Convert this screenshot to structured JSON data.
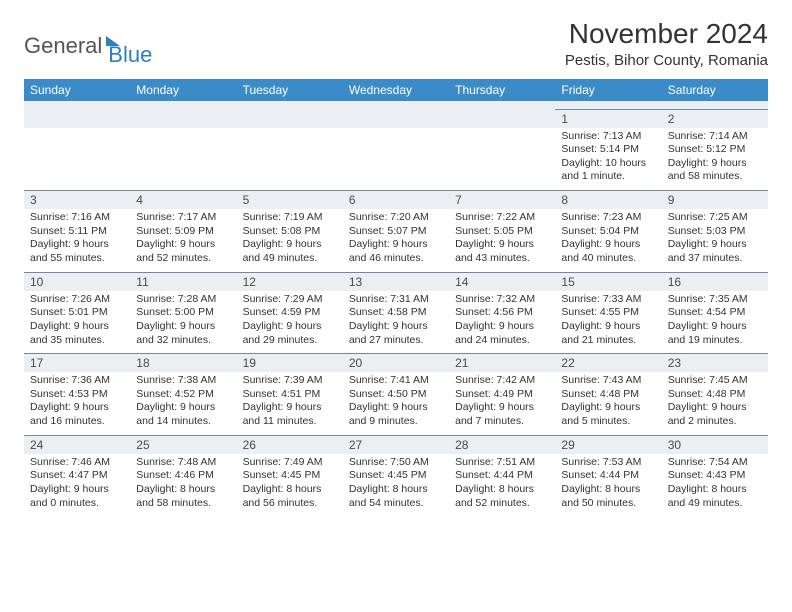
{
  "logo": {
    "part1": "General",
    "part2": "Blue"
  },
  "title": "November 2024",
  "location": "Pestis, Bihor County, Romania",
  "weekdays": [
    "Sunday",
    "Monday",
    "Tuesday",
    "Wednesday",
    "Thursday",
    "Friday",
    "Saturday"
  ],
  "colors": {
    "header_bg": "#3b8bc9",
    "header_text": "#ffffff",
    "daynum_bg": "#eceff1",
    "border": "#6e8aa0",
    "body_text": "#333333",
    "logo_gray": "#555555",
    "logo_blue": "#2f7fbf"
  },
  "weeks": [
    [
      null,
      null,
      null,
      null,
      null,
      {
        "n": "1",
        "sr": "Sunrise: 7:13 AM",
        "ss": "Sunset: 5:14 PM",
        "dl": "Daylight: 10 hours and 1 minute."
      },
      {
        "n": "2",
        "sr": "Sunrise: 7:14 AM",
        "ss": "Sunset: 5:12 PM",
        "dl": "Daylight: 9 hours and 58 minutes."
      }
    ],
    [
      {
        "n": "3",
        "sr": "Sunrise: 7:16 AM",
        "ss": "Sunset: 5:11 PM",
        "dl": "Daylight: 9 hours and 55 minutes."
      },
      {
        "n": "4",
        "sr": "Sunrise: 7:17 AM",
        "ss": "Sunset: 5:09 PM",
        "dl": "Daylight: 9 hours and 52 minutes."
      },
      {
        "n": "5",
        "sr": "Sunrise: 7:19 AM",
        "ss": "Sunset: 5:08 PM",
        "dl": "Daylight: 9 hours and 49 minutes."
      },
      {
        "n": "6",
        "sr": "Sunrise: 7:20 AM",
        "ss": "Sunset: 5:07 PM",
        "dl": "Daylight: 9 hours and 46 minutes."
      },
      {
        "n": "7",
        "sr": "Sunrise: 7:22 AM",
        "ss": "Sunset: 5:05 PM",
        "dl": "Daylight: 9 hours and 43 minutes."
      },
      {
        "n": "8",
        "sr": "Sunrise: 7:23 AM",
        "ss": "Sunset: 5:04 PM",
        "dl": "Daylight: 9 hours and 40 minutes."
      },
      {
        "n": "9",
        "sr": "Sunrise: 7:25 AM",
        "ss": "Sunset: 5:03 PM",
        "dl": "Daylight: 9 hours and 37 minutes."
      }
    ],
    [
      {
        "n": "10",
        "sr": "Sunrise: 7:26 AM",
        "ss": "Sunset: 5:01 PM",
        "dl": "Daylight: 9 hours and 35 minutes."
      },
      {
        "n": "11",
        "sr": "Sunrise: 7:28 AM",
        "ss": "Sunset: 5:00 PM",
        "dl": "Daylight: 9 hours and 32 minutes."
      },
      {
        "n": "12",
        "sr": "Sunrise: 7:29 AM",
        "ss": "Sunset: 4:59 PM",
        "dl": "Daylight: 9 hours and 29 minutes."
      },
      {
        "n": "13",
        "sr": "Sunrise: 7:31 AM",
        "ss": "Sunset: 4:58 PM",
        "dl": "Daylight: 9 hours and 27 minutes."
      },
      {
        "n": "14",
        "sr": "Sunrise: 7:32 AM",
        "ss": "Sunset: 4:56 PM",
        "dl": "Daylight: 9 hours and 24 minutes."
      },
      {
        "n": "15",
        "sr": "Sunrise: 7:33 AM",
        "ss": "Sunset: 4:55 PM",
        "dl": "Daylight: 9 hours and 21 minutes."
      },
      {
        "n": "16",
        "sr": "Sunrise: 7:35 AM",
        "ss": "Sunset: 4:54 PM",
        "dl": "Daylight: 9 hours and 19 minutes."
      }
    ],
    [
      {
        "n": "17",
        "sr": "Sunrise: 7:36 AM",
        "ss": "Sunset: 4:53 PM",
        "dl": "Daylight: 9 hours and 16 minutes."
      },
      {
        "n": "18",
        "sr": "Sunrise: 7:38 AM",
        "ss": "Sunset: 4:52 PM",
        "dl": "Daylight: 9 hours and 14 minutes."
      },
      {
        "n": "19",
        "sr": "Sunrise: 7:39 AM",
        "ss": "Sunset: 4:51 PM",
        "dl": "Daylight: 9 hours and 11 minutes."
      },
      {
        "n": "20",
        "sr": "Sunrise: 7:41 AM",
        "ss": "Sunset: 4:50 PM",
        "dl": "Daylight: 9 hours and 9 minutes."
      },
      {
        "n": "21",
        "sr": "Sunrise: 7:42 AM",
        "ss": "Sunset: 4:49 PM",
        "dl": "Daylight: 9 hours and 7 minutes."
      },
      {
        "n": "22",
        "sr": "Sunrise: 7:43 AM",
        "ss": "Sunset: 4:48 PM",
        "dl": "Daylight: 9 hours and 5 minutes."
      },
      {
        "n": "23",
        "sr": "Sunrise: 7:45 AM",
        "ss": "Sunset: 4:48 PM",
        "dl": "Daylight: 9 hours and 2 minutes."
      }
    ],
    [
      {
        "n": "24",
        "sr": "Sunrise: 7:46 AM",
        "ss": "Sunset: 4:47 PM",
        "dl": "Daylight: 9 hours and 0 minutes."
      },
      {
        "n": "25",
        "sr": "Sunrise: 7:48 AM",
        "ss": "Sunset: 4:46 PM",
        "dl": "Daylight: 8 hours and 58 minutes."
      },
      {
        "n": "26",
        "sr": "Sunrise: 7:49 AM",
        "ss": "Sunset: 4:45 PM",
        "dl": "Daylight: 8 hours and 56 minutes."
      },
      {
        "n": "27",
        "sr": "Sunrise: 7:50 AM",
        "ss": "Sunset: 4:45 PM",
        "dl": "Daylight: 8 hours and 54 minutes."
      },
      {
        "n": "28",
        "sr": "Sunrise: 7:51 AM",
        "ss": "Sunset: 4:44 PM",
        "dl": "Daylight: 8 hours and 52 minutes."
      },
      {
        "n": "29",
        "sr": "Sunrise: 7:53 AM",
        "ss": "Sunset: 4:44 PM",
        "dl": "Daylight: 8 hours and 50 minutes."
      },
      {
        "n": "30",
        "sr": "Sunrise: 7:54 AM",
        "ss": "Sunset: 4:43 PM",
        "dl": "Daylight: 8 hours and 49 minutes."
      }
    ]
  ]
}
